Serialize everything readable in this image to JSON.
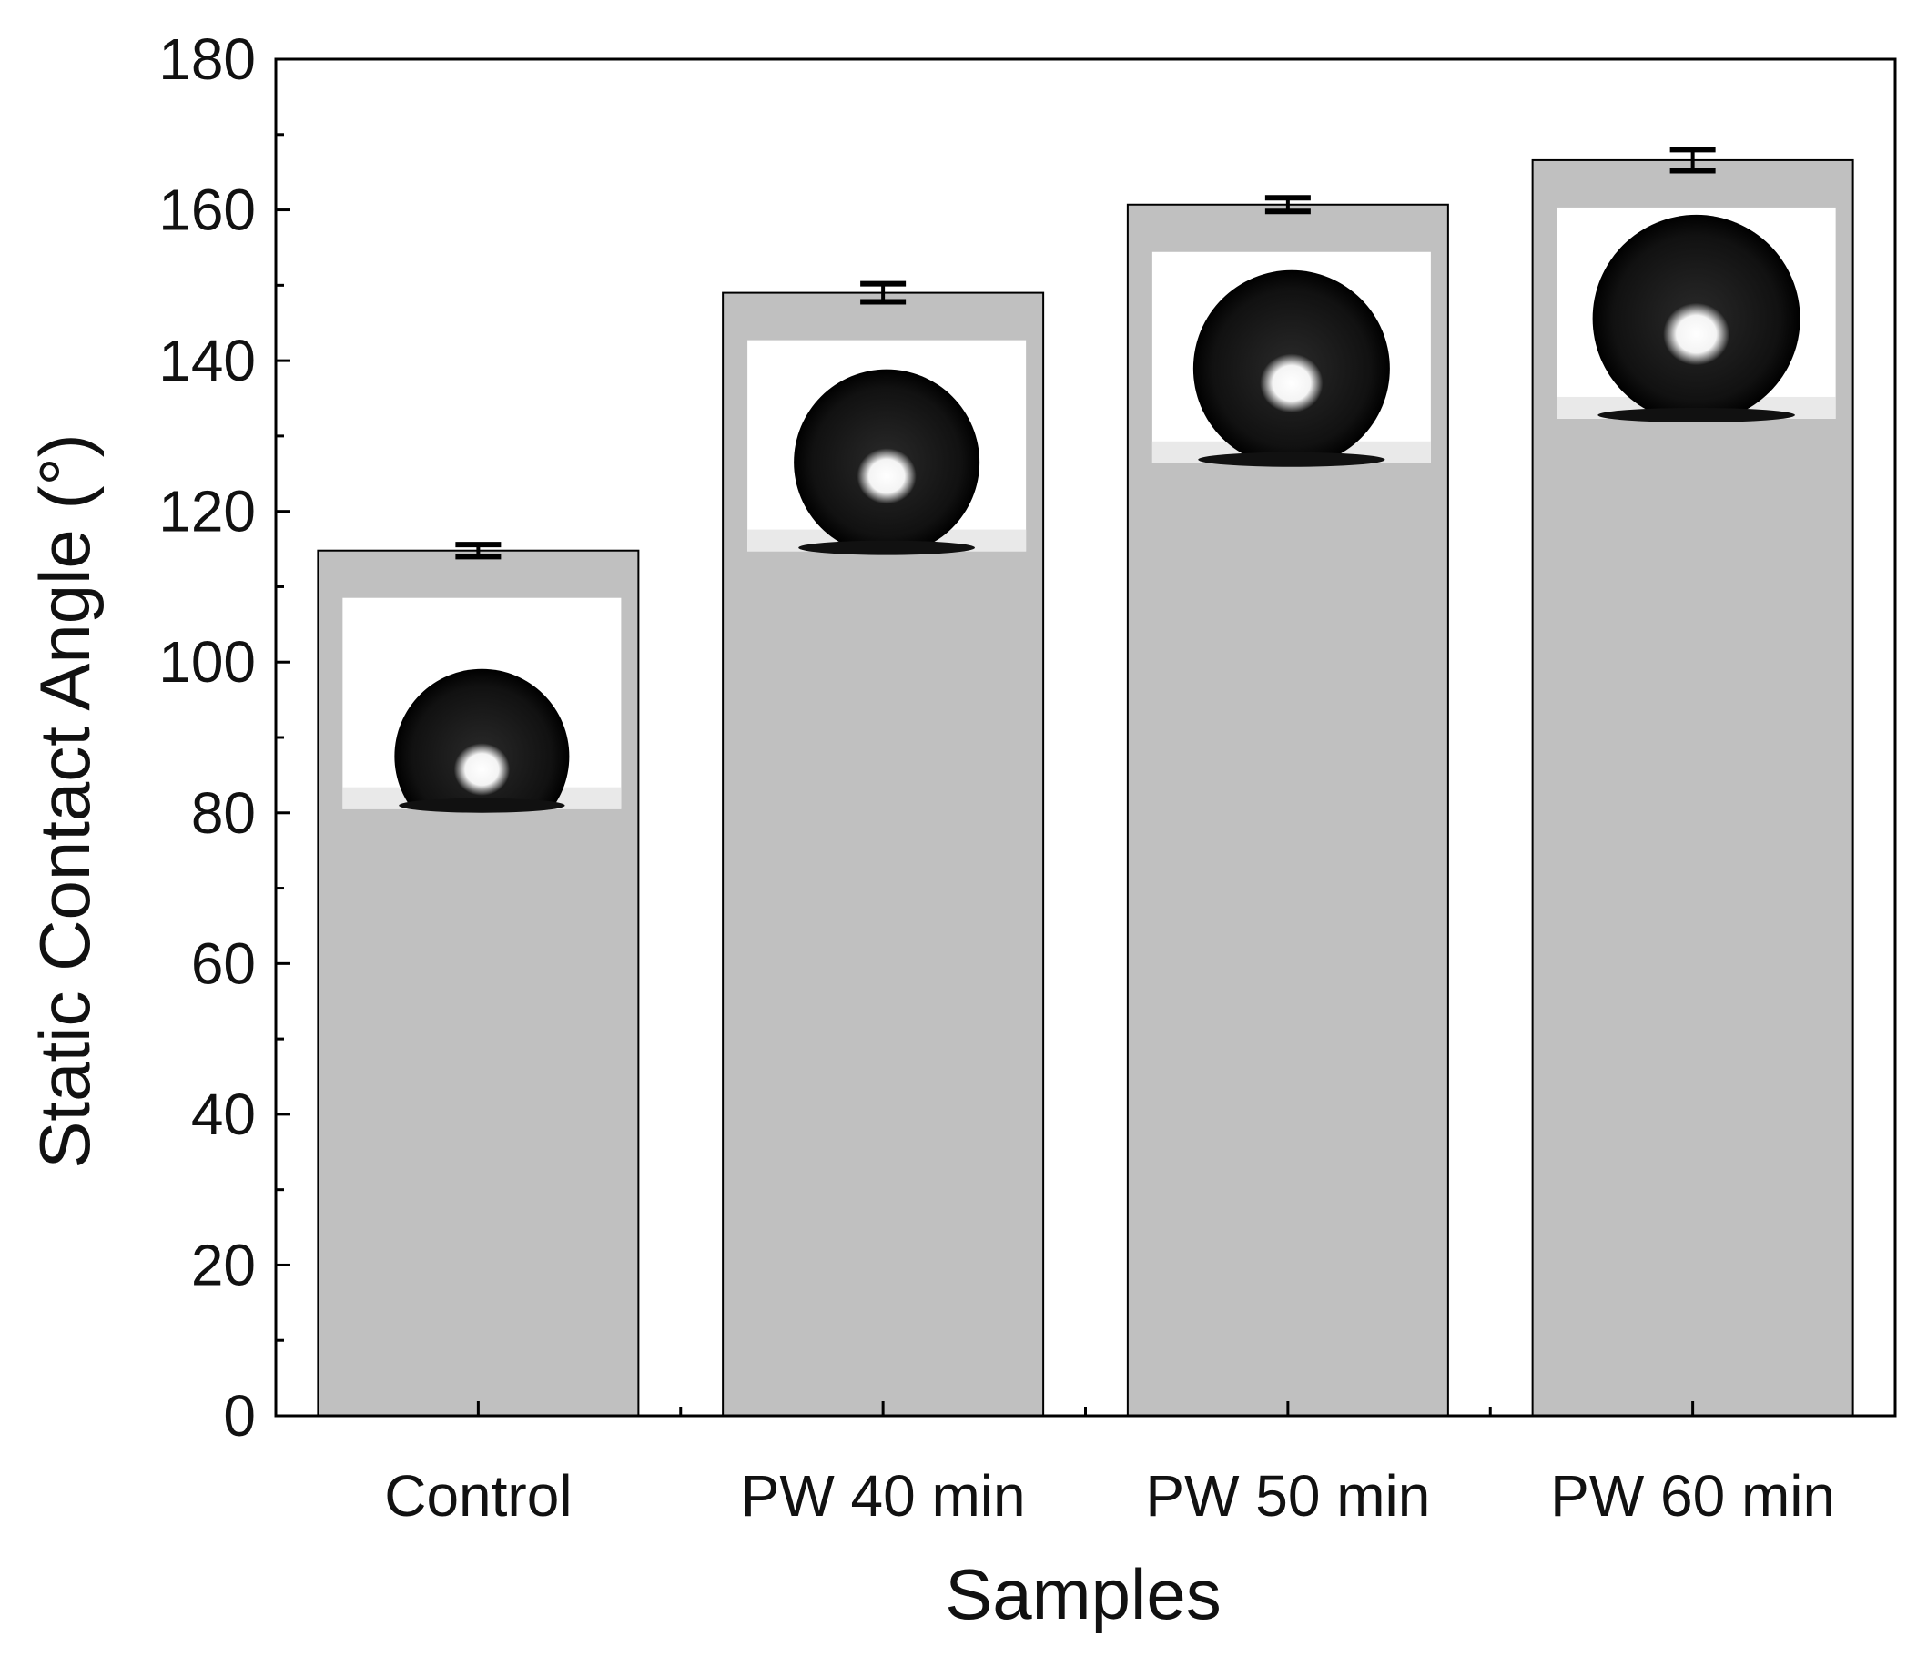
{
  "chart_data": {
    "type": "bar",
    "title": "",
    "xlabel": "Samples",
    "ylabel": "Static Contact Angle (°)",
    "categories": [
      "Control",
      "PW 40 min",
      "PW 50 min",
      "PW 60 min"
    ],
    "values": [
      114.8,
      149.0,
      160.7,
      166.6
    ],
    "errors": [
      0.8,
      1.2,
      0.9,
      1.4
    ],
    "ylim": [
      0,
      180
    ],
    "yticks": [
      0,
      20,
      40,
      60,
      80,
      100,
      120,
      140,
      160,
      180
    ],
    "ytick_labels": [
      "0",
      "20",
      "40",
      "60",
      "80",
      "100",
      "120",
      "140",
      "160",
      "180"
    ],
    "grid": false,
    "bar_color": "#c0c0c0",
    "insets": "water droplet photograph inside each bar"
  }
}
